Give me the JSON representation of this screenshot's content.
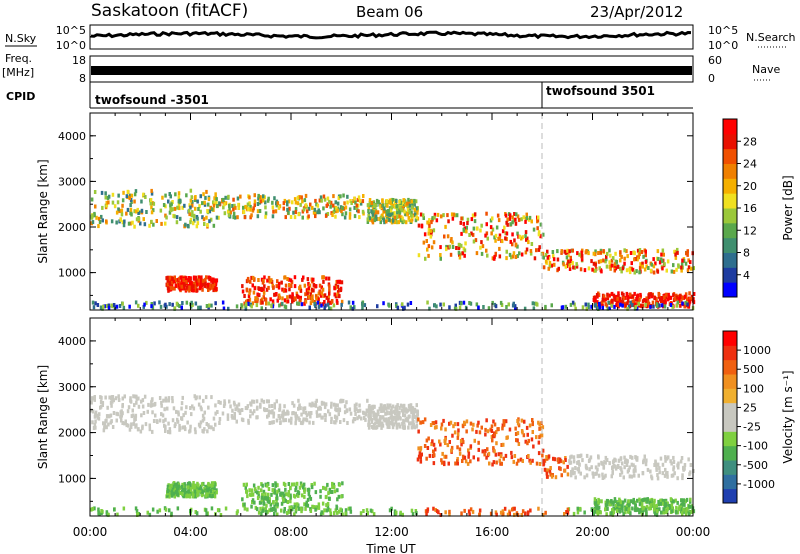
{
  "header": {
    "title": "Saskatoon (fitACF)",
    "beam": "Beam 06",
    "date": "23/Apr/2012"
  },
  "side_labels": {
    "nsky": "N.Sky",
    "freq": "Freq.",
    "freq_unit": "[MHz]",
    "cpid": "CPID",
    "nsearch": "N.Search",
    "nave": "Nave"
  },
  "cpid_labels": {
    "left": "twofsound -3501",
    "right": "twofsound 3501"
  },
  "chart_data": [
    {
      "type": "line",
      "name": "noise-panel",
      "left_ticks": [
        "10^5",
        "10^0"
      ],
      "right_ticks": [
        "10^5",
        "10^0"
      ],
      "description_series": [
        "N.Sky",
        "N.Search"
      ]
    },
    {
      "type": "area",
      "name": "freq-nave-panel",
      "left_ticks": [
        "18",
        "8"
      ],
      "right_ticks": [
        "60",
        "0"
      ]
    },
    {
      "type": "heatmap",
      "name": "power",
      "ylabel": "Slant Range [km]",
      "y_ticks": [
        "4000",
        "3000",
        "2000",
        "1000"
      ],
      "ylim": [
        180,
        4500
      ],
      "x_ticks": [
        "00:00",
        "04:00",
        "08:00",
        "12:00",
        "16:00",
        "20:00",
        "00:00"
      ],
      "xlim_hours": [
        0,
        24
      ],
      "colorbar": {
        "label": "Power [dB]",
        "ticks": [
          "28",
          "24",
          "20",
          "16",
          "12",
          "8",
          "4"
        ],
        "colors": [
          "#0000ff",
          "#1e3ca0",
          "#2e6e8e",
          "#3f8f6f",
          "#5aa84c",
          "#9bc83a",
          "#f0e020",
          "#f5b000",
          "#f08000",
          "#f05000",
          "#e81000",
          "#ff0000"
        ]
      }
    },
    {
      "type": "heatmap",
      "name": "velocity",
      "ylabel": "Slant Range [km]",
      "y_ticks": [
        "4000",
        "3000",
        "2000",
        "1000"
      ],
      "ylim": [
        180,
        4500
      ],
      "x_ticks": [
        "00:00",
        "04:00",
        "08:00",
        "12:00",
        "16:00",
        "20:00",
        "00:00"
      ],
      "xlim_hours": [
        0,
        24
      ],
      "xlabel": "Time UT",
      "colorbar": {
        "label": "Velocity [m s⁻¹]",
        "ticks": [
          "1000",
          "500",
          "100",
          "25",
          "-25",
          "-100",
          "-500",
          "-1000"
        ],
        "colors": [
          "#1f3fb0",
          "#2f6fa0",
          "#3f8f7f",
          "#4fb04f",
          "#7fd040",
          "#c8c8c0",
          "#c8c8c0",
          "#f0b030",
          "#f09020",
          "#f06010",
          "#ee3010",
          "#ff0000"
        ]
      }
    }
  ]
}
